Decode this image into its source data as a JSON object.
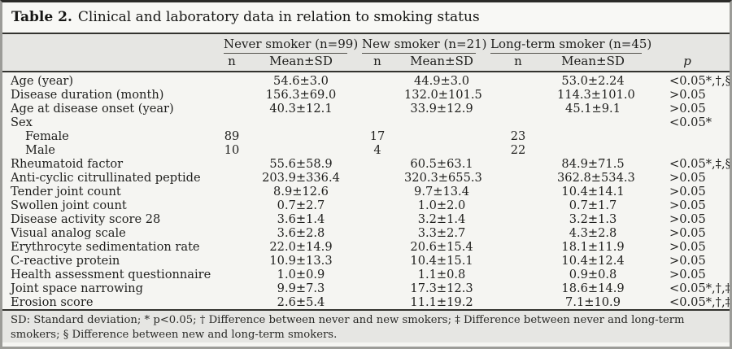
{
  "title": {
    "label": "Table 2.",
    "text": "Clinical and laboratory data in relation to smoking status"
  },
  "table": {
    "groups": [
      {
        "label": "Never smoker (n=99)"
      },
      {
        "label": "New smoker (n=21)"
      },
      {
        "label": "Long-term smoker (n=45)"
      }
    ],
    "subheaders": {
      "n": "n",
      "mean": "Mean±SD",
      "p": "p"
    },
    "rows": [
      {
        "label": "Age (year)",
        "indent": false,
        "n1": "",
        "m1": "54.6±3.0",
        "n2": "",
        "m2": "44.9±3.0",
        "n3": "",
        "m3": "53.0±2.24",
        "p": "<0.05*,†,§"
      },
      {
        "label": "Disease duration (month)",
        "indent": false,
        "n1": "",
        "m1": "156.3±69.0",
        "n2": "",
        "m2": "132.0±101.5",
        "n3": "",
        "m3": "114.3±101.0",
        "p": ">0.05"
      },
      {
        "label": "Age at disease onset (year)",
        "indent": false,
        "n1": "",
        "m1": "40.3±12.1",
        "n2": "",
        "m2": "33.9±12.9",
        "n3": "",
        "m3": "45.1±9.1",
        "p": ">0.05"
      },
      {
        "label": "Sex",
        "indent": false,
        "n1": "",
        "m1": "",
        "n2": "",
        "m2": "",
        "n3": "",
        "m3": "",
        "p": "<0.05*"
      },
      {
        "label": "Female",
        "indent": true,
        "n1": "89",
        "m1": "",
        "n2": "17",
        "m2": "",
        "n3": "23",
        "m3": "",
        "p": ""
      },
      {
        "label": "Male",
        "indent": true,
        "n1": "10",
        "m1": "",
        "n2": "4",
        "m2": "",
        "n3": "22",
        "m3": "",
        "p": ""
      },
      {
        "label": "Rheumatoid factor",
        "indent": false,
        "n1": "",
        "m1": "55.6±58.9",
        "n2": "",
        "m2": "60.5±63.1",
        "n3": "",
        "m3": "84.9±71.5",
        "p": "<0.05*,‡,§"
      },
      {
        "label": "Anti-cyclic citrullinated peptide",
        "indent": false,
        "n1": "",
        "m1": "203.9±336.4",
        "n2": "",
        "m2": "320.3±655.3",
        "n3": "",
        "m3": "362.8±534.3",
        "p": ">0.05"
      },
      {
        "label": "Tender joint count",
        "indent": false,
        "n1": "",
        "m1": "8.9±12.6",
        "n2": "",
        "m2": "9.7±13.4",
        "n3": "",
        "m3": "10.4±14.1",
        "p": ">0.05"
      },
      {
        "label": "Swollen joint count",
        "indent": false,
        "n1": "",
        "m1": "0.7±2.7",
        "n2": "",
        "m2": "1.0±2.0",
        "n3": "",
        "m3": "0.7±1.7",
        "p": ">0.05"
      },
      {
        "label": "Disease activity score 28",
        "indent": false,
        "n1": "",
        "m1": "3.6±1.4",
        "n2": "",
        "m2": "3.2±1.4",
        "n3": "",
        "m3": "3.2±1.3",
        "p": ">0.05"
      },
      {
        "label": "Visual analog scale",
        "indent": false,
        "n1": "",
        "m1": "3.6±2.8",
        "n2": "",
        "m2": "3.3±2.7",
        "n3": "",
        "m3": "4.3±2.8",
        "p": ">0.05"
      },
      {
        "label": "Erythrocyte sedimentation rate",
        "indent": false,
        "n1": "",
        "m1": "22.0±14.9",
        "n2": "",
        "m2": "20.6±15.4",
        "n3": "",
        "m3": "18.1±11.9",
        "p": ">0.05"
      },
      {
        "label": "C-reactive protein",
        "indent": false,
        "n1": "",
        "m1": "10.9±13.3",
        "n2": "",
        "m2": "10.4±15.1",
        "n3": "",
        "m3": "10.4±12.4",
        "p": ">0.05"
      },
      {
        "label": "Health assessment questionnaire",
        "indent": false,
        "n1": "",
        "m1": "1.0±0.9",
        "n2": "",
        "m2": "1.1±0.8",
        "n3": "",
        "m3": "0.9±0.8",
        "p": ">0.05"
      },
      {
        "label": "Joint space narrowing",
        "indent": false,
        "n1": "",
        "m1": "9.9±7.3",
        "n2": "",
        "m2": "17.3±12.3",
        "n3": "",
        "m3": "18.6±14.9",
        "p": "<0.05*,†,‡"
      },
      {
        "label": "Erosion score",
        "indent": false,
        "n1": "",
        "m1": "2.6±5.4",
        "n2": "",
        "m2": "11.1±19.2",
        "n3": "",
        "m3": "7.1±10.9",
        "p": "<0.05*,†,‡"
      }
    ]
  },
  "footnote": "SD: Standard deviation; * p<0.05; † Difference between never and new smokers; ‡ Difference between never and long-term smokers; § Difference between new and long-term smokers."
}
